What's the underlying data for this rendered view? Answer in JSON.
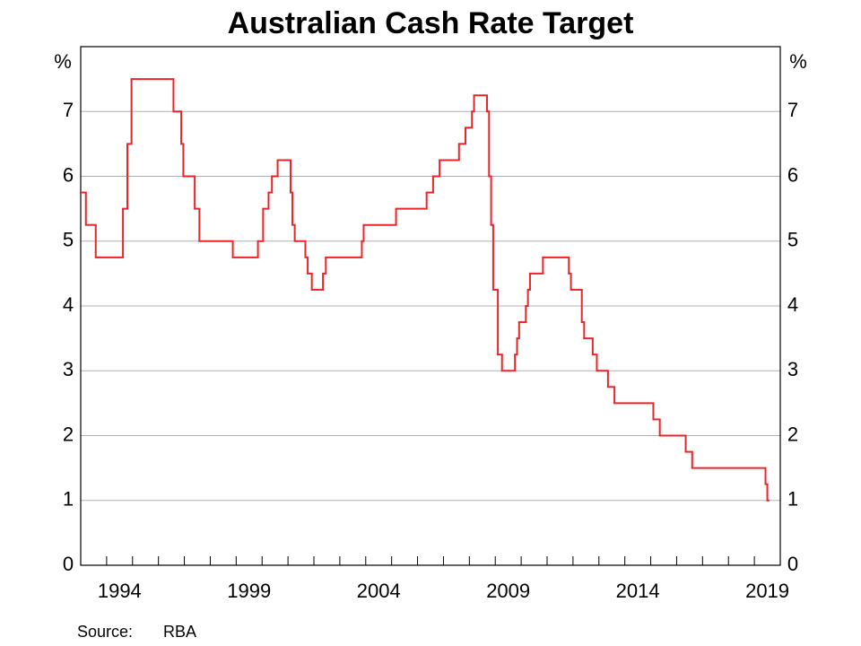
{
  "chart_data": {
    "type": "step",
    "title": "Australian Cash Rate Target",
    "y_unit": "%",
    "x": [
      1993.0,
      1993.2,
      1993.58,
      1994.63,
      1994.8,
      1994.96,
      1996.58,
      1996.88,
      1996.96,
      1997.4,
      1997.58,
      1998.87,
      1999.84,
      2000.04,
      2000.25,
      2000.38,
      2000.6,
      2001.1,
      2001.17,
      2001.26,
      2001.67,
      2001.76,
      2001.92,
      2002.35,
      2002.46,
      2003.85,
      2003.92,
      2005.17,
      2006.35,
      2006.6,
      2006.85,
      2007.6,
      2007.85,
      2008.1,
      2008.18,
      2008.68,
      2008.76,
      2008.84,
      2008.92,
      2009.1,
      2009.26,
      2009.76,
      2009.84,
      2009.92,
      2010.18,
      2010.26,
      2010.34,
      2010.84,
      2011.84,
      2011.92,
      2012.34,
      2012.43,
      2012.76,
      2012.92,
      2013.35,
      2013.6,
      2015.1,
      2015.35,
      2016.35,
      2016.6,
      2019.43,
      2019.5,
      2019.55
    ],
    "series": [
      {
        "name": "Cash rate target",
        "color": "#e8262a",
        "values": [
          5.75,
          5.25,
          4.75,
          5.5,
          6.5,
          7.5,
          7.0,
          6.5,
          6.0,
          5.5,
          5.0,
          4.75,
          5.0,
          5.5,
          5.75,
          6.0,
          6.25,
          5.75,
          5.25,
          5.0,
          4.75,
          4.5,
          4.25,
          4.5,
          4.75,
          5.0,
          5.25,
          5.5,
          5.75,
          6.0,
          6.25,
          6.5,
          6.75,
          7.0,
          7.25,
          7.0,
          6.0,
          5.25,
          4.25,
          3.25,
          3.0,
          3.25,
          3.5,
          3.75,
          4.0,
          4.25,
          4.5,
          4.75,
          4.5,
          4.25,
          3.75,
          3.5,
          3.25,
          3.0,
          2.75,
          2.5,
          2.25,
          2.0,
          1.75,
          1.5,
          1.25,
          1.0,
          1.0
        ]
      }
    ],
    "xlim": [
      1993,
      2020
    ],
    "xticks": [
      {
        "value": 1994.5,
        "label": "1994"
      },
      {
        "value": 1999.5,
        "label": "1999"
      },
      {
        "value": 2004.5,
        "label": "2004"
      },
      {
        "value": 2009.5,
        "label": "2009"
      },
      {
        "value": 2014.5,
        "label": "2014"
      },
      {
        "value": 2019.5,
        "label": "2019"
      }
    ],
    "xminorticks": [
      1994,
      1995,
      1996,
      1997,
      1998,
      1999,
      2000,
      2001,
      2002,
      2003,
      2004,
      2005,
      2006,
      2007,
      2008,
      2009,
      2010,
      2011,
      2012,
      2013,
      2014,
      2015,
      2016,
      2017,
      2018,
      2019
    ],
    "ylim": [
      0,
      8
    ],
    "yticks": [
      0,
      1,
      2,
      3,
      4,
      5,
      6,
      7
    ],
    "grid": true,
    "source_label": "Source:",
    "source": "RBA"
  }
}
